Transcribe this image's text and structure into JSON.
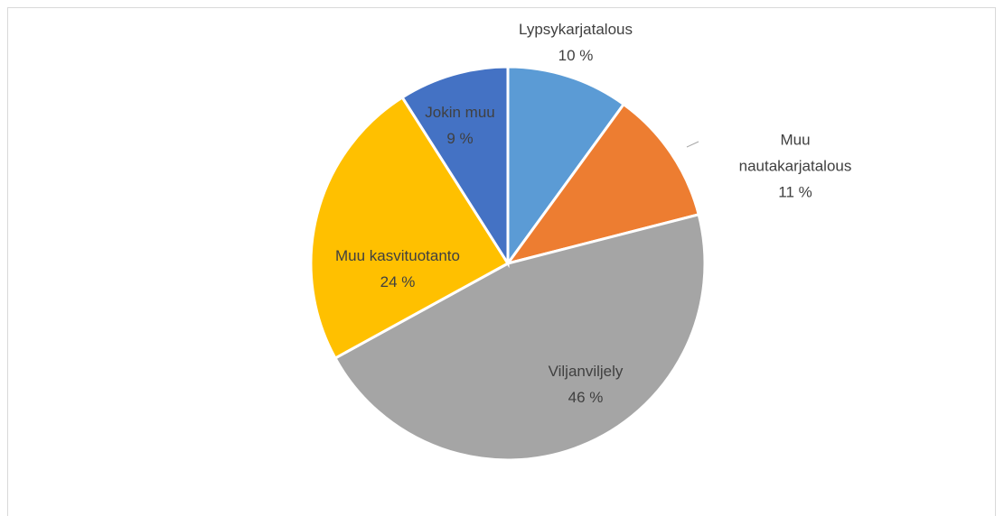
{
  "chart_data": {
    "type": "pie",
    "categories": [
      "Lypsykarjatalous",
      "Muu nautakarjatalous",
      "Viljanviljely",
      "Muu kasvituotanto",
      "Jokin muu"
    ],
    "values": [
      10,
      11,
      46,
      24,
      9
    ],
    "value_labels": [
      "10 %",
      "11 %",
      "46 %",
      "24 %",
      "9 %"
    ],
    "colors": [
      "#5b9bd5",
      "#ed7d31",
      "#a5a5a5",
      "#ffc000",
      "#4472c4"
    ]
  }
}
